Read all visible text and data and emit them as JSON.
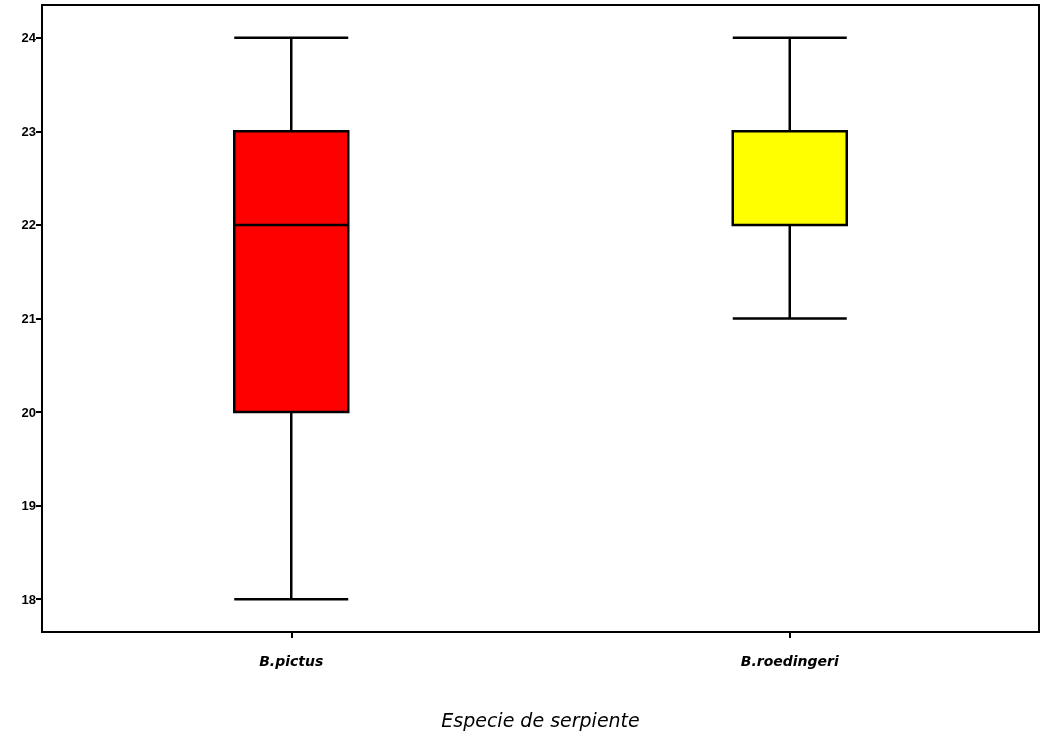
{
  "chart_data": {
    "type": "box",
    "xlabel": "Especie de serpiente",
    "categories": [
      "B.pictus",
      "B.roedingeri"
    ],
    "boxes": [
      {
        "low": 18,
        "q1": 20,
        "median": 22,
        "q3": 23,
        "high": 24
      },
      {
        "low": 21,
        "q1": 22,
        "median": 22,
        "q3": 23,
        "high": 24
      }
    ],
    "colors": [
      "#ff0000",
      "#ffff00"
    ],
    "ylim": [
      17.65,
      24.35
    ],
    "yticks": [
      18,
      19,
      20,
      21,
      22,
      23,
      24
    ]
  }
}
